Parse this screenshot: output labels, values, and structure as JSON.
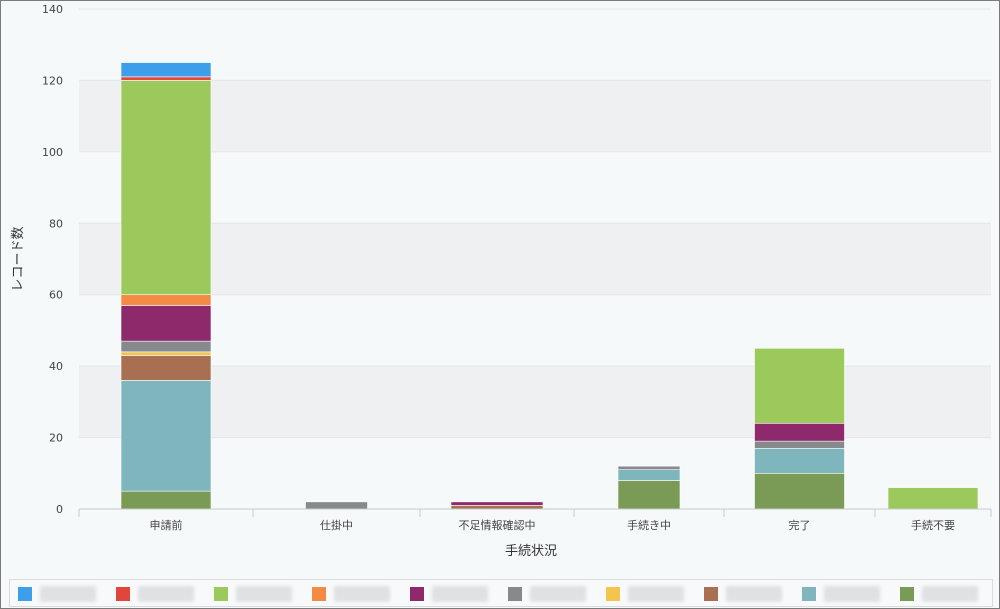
{
  "chart_data": {
    "type": "bar",
    "stacked": true,
    "title": "",
    "xlabel": "手続状況",
    "ylabel": "レコード数",
    "ylim": [
      0,
      140
    ],
    "yticks": [
      0,
      20,
      40,
      60,
      80,
      100,
      120,
      140
    ],
    "grid": true,
    "legend_position": "bottom",
    "categories": [
      "申請前",
      "仕掛中",
      "不足情報確認中",
      "手続き中",
      "完了",
      "手続不要"
    ],
    "series": [
      {
        "color": "#7a9b55",
        "values": [
          5,
          0,
          0,
          8,
          10,
          0
        ]
      },
      {
        "color": "#7fb5bc",
        "values": [
          31,
          0,
          0,
          3,
          7,
          0
        ]
      },
      {
        "color": "#a87050",
        "values": [
          7,
          0,
          1,
          0,
          0,
          0
        ]
      },
      {
        "color": "#f4c44e",
        "values": [
          1,
          0,
          0,
          0,
          0,
          0
        ]
      },
      {
        "color": "#868a8c",
        "values": [
          3,
          2,
          0,
          1,
          2,
          0
        ]
      },
      {
        "color": "#8e2a6c",
        "values": [
          10,
          0,
          1,
          0,
          5,
          0
        ]
      },
      {
        "color": "#f58a45",
        "values": [
          3,
          0,
          0,
          0,
          0,
          0
        ]
      },
      {
        "color": "#9bc95b",
        "values": [
          60,
          0,
          0,
          0,
          21,
          6
        ]
      },
      {
        "color": "#e0473a",
        "values": [
          1,
          0,
          0,
          0,
          0,
          0
        ]
      },
      {
        "color": "#3d9ee9",
        "values": [
          4,
          0,
          0,
          0,
          0,
          0
        ]
      }
    ],
    "legend_colors": [
      "#3d9ee9",
      "#e0473a",
      "#9bc95b",
      "#f58a45",
      "#8e2a6c",
      "#868a8c",
      "#f4c44e",
      "#a87050",
      "#7fb5bc",
      "#7a9b55"
    ]
  }
}
